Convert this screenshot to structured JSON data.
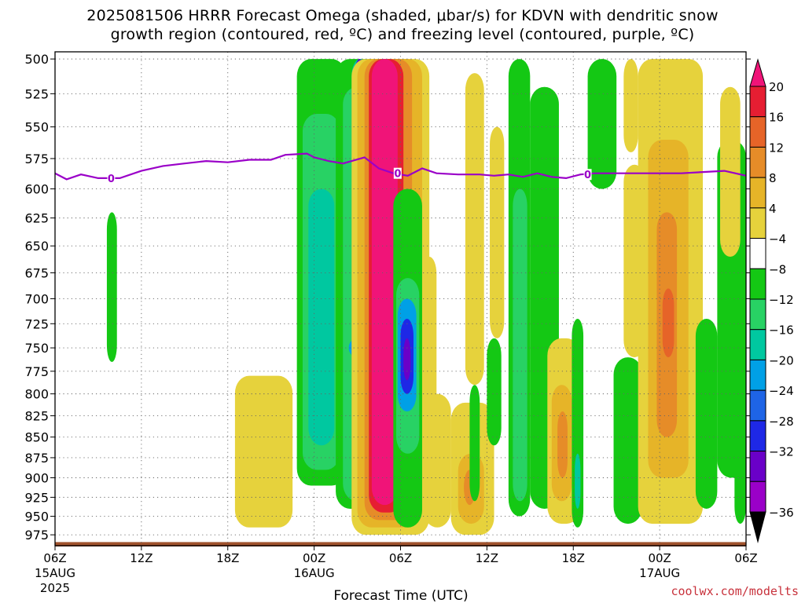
{
  "header": {
    "title_line1": "2025081506 HRRR Forecast Omega (shaded, μbar/s) for KDVN with dendritic snow",
    "title_line2": "growth region (contoured, red, ºC) and freezing level (contoured, purple, ºC)"
  },
  "footer": {
    "xlabel": "Forecast Time (UTC)",
    "credit": "coolwx.com/modelts"
  },
  "colors": {
    "c-36": "#a0a0a0",
    "c-32": "#9a00c8",
    "c-28": "#6a00c8",
    "c-24": "#1e28e6",
    "c-20": "#1e64e6",
    "c-16": "#00a0e6",
    "c-12": "#00c8a0",
    "c-8": "#28d264",
    "c-4": "#14c814",
    "c0": "#ffffff",
    "c4": "#e6d23c",
    "c8": "#e6b428",
    "c12": "#e68c28",
    "c16": "#e66428",
    "c20": "#e61e32",
    "c24": "#f01478",
    "freezing": "#9a00c8",
    "terrain": "#a0522d"
  },
  "chart_data": {
    "type": "heatmap",
    "title": "2025081506 HRRR Forecast Omega (shaded, μbar/s) for KDVN with dendritic snow growth region (contoured, red, ºC) and freezing level (contoured, purple, ºC)",
    "xlabel": "Forecast Time (UTC)",
    "ylabel": "",
    "x_range_hours": [
      0,
      48
    ],
    "y_range_hpa": [
      500,
      990
    ],
    "y_scale": "log-pressure (inverted)",
    "y_ticks": [
      500,
      525,
      550,
      575,
      600,
      625,
      650,
      675,
      700,
      725,
      750,
      775,
      800,
      825,
      850,
      875,
      900,
      925,
      950,
      975
    ],
    "x_ticks": [
      {
        "hour": 0,
        "label": "06Z",
        "sub1": "15AUG",
        "sub2": "2025"
      },
      {
        "hour": 6,
        "label": "12Z",
        "sub1": "",
        "sub2": ""
      },
      {
        "hour": 12,
        "label": "18Z",
        "sub1": "",
        "sub2": ""
      },
      {
        "hour": 18,
        "label": "00Z",
        "sub1": "16AUG",
        "sub2": ""
      },
      {
        "hour": 24,
        "label": "06Z",
        "sub1": "",
        "sub2": ""
      },
      {
        "hour": 30,
        "label": "12Z",
        "sub1": "",
        "sub2": ""
      },
      {
        "hour": 36,
        "label": "18Z",
        "sub1": "",
        "sub2": ""
      },
      {
        "hour": 42,
        "label": "00Z",
        "sub1": "17AUG",
        "sub2": ""
      },
      {
        "hour": 48,
        "label": "06Z",
        "sub1": "",
        "sub2": ""
      }
    ],
    "grid": true,
    "colorbar": {
      "placement": "right",
      "labels": [
        "20",
        "16",
        "12",
        "8",
        "4",
        "−4",
        "−8",
        "−12",
        "−16",
        "−20",
        "−24",
        "−28",
        "−32",
        "−36"
      ],
      "colors": [
        "#f01478",
        "#e61e32",
        "#e66428",
        "#e68c28",
        "#e6b428",
        "#e6d23c",
        "#ffffff",
        "#14c814",
        "#28d264",
        "#00c8a0",
        "#00a0e6",
        "#1e64e6",
        "#1e28e6",
        "#6a00c8",
        "#9a00c8",
        "#a0a0a0"
      ]
    },
    "freezing_level": {
      "label": "0",
      "points": [
        [
          0,
          587
        ],
        [
          0.8,
          592
        ],
        [
          1.8,
          588
        ],
        [
          3.0,
          591
        ],
        [
          4.5,
          591
        ],
        [
          6.0,
          585
        ],
        [
          7.5,
          581
        ],
        [
          9.0,
          579
        ],
        [
          10.5,
          577
        ],
        [
          12.0,
          578
        ],
        [
          13.5,
          576
        ],
        [
          15.0,
          576
        ],
        [
          16.0,
          572
        ],
        [
          17.5,
          571
        ],
        [
          18.0,
          574
        ],
        [
          19.0,
          577
        ],
        [
          20.0,
          579
        ],
        [
          21.5,
          574
        ],
        [
          22.5,
          583
        ],
        [
          23.5,
          587
        ],
        [
          24.5,
          589
        ],
        [
          25.5,
          583
        ],
        [
          26.5,
          587
        ],
        [
          28.0,
          588
        ],
        [
          29.5,
          588
        ],
        [
          30.5,
          589
        ],
        [
          31.5,
          588
        ],
        [
          32.5,
          590
        ],
        [
          33.5,
          587
        ],
        [
          34.5,
          590
        ],
        [
          35.5,
          591
        ],
        [
          36.5,
          588
        ],
        [
          37.5,
          587
        ],
        [
          39.0,
          587
        ],
        [
          40.5,
          587
        ],
        [
          42.0,
          587
        ],
        [
          43.5,
          587
        ],
        [
          45.0,
          586
        ],
        [
          46.5,
          585
        ],
        [
          48.0,
          589
        ]
      ],
      "label_hours": [
        3.9,
        23.8,
        37.0
      ]
    },
    "omega_cells": [
      {
        "t0": 3.6,
        "t1": 4.3,
        "p0": 620,
        "p1": 765,
        "v": -4
      },
      {
        "t0": 12.5,
        "t1": 16.5,
        "p0": 780,
        "p1": 965,
        "v": 4
      },
      {
        "t0": 16.8,
        "t1": 20.2,
        "p0": 500,
        "p1": 910,
        "v": -4
      },
      {
        "t0": 17.2,
        "t1": 19.8,
        "p0": 540,
        "p1": 890,
        "v": -8
      },
      {
        "t0": 17.6,
        "t1": 19.4,
        "p0": 600,
        "p1": 860,
        "v": -12
      },
      {
        "t0": 19.5,
        "t1": 23.5,
        "p0": 500,
        "p1": 940,
        "v": -4
      },
      {
        "t0": 20.0,
        "t1": 22.5,
        "p0": 520,
        "p1": 930,
        "v": -8
      },
      {
        "t0": 20.6,
        "t1": 21.8,
        "p0": 500,
        "p1": 920,
        "v": -12
      },
      {
        "t0": 20.8,
        "t1": 21.5,
        "p0": 500,
        "p1": 590,
        "v": -24
      },
      {
        "t0": 20.9,
        "t1": 21.4,
        "p0": 500,
        "p1": 560,
        "v": -28
      },
      {
        "t0": 20.4,
        "t1": 21.6,
        "p0": 740,
        "p1": 760,
        "v": -16
      },
      {
        "t0": 20.6,
        "t1": 26.0,
        "p0": 500,
        "p1": 975,
        "v": 4
      },
      {
        "t0": 21.0,
        "t1": 25.5,
        "p0": 500,
        "p1": 965,
        "v": 8
      },
      {
        "t0": 21.5,
        "t1": 24.8,
        "p0": 500,
        "p1": 955,
        "v": 12
      },
      {
        "t0": 21.8,
        "t1": 24.2,
        "p0": 500,
        "p1": 945,
        "v": 20
      },
      {
        "t0": 22.0,
        "t1": 23.8,
        "p0": 500,
        "p1": 935,
        "v": 24
      },
      {
        "t0": 23.5,
        "t1": 25.5,
        "p0": 600,
        "p1": 965,
        "v": -4
      },
      {
        "t0": 23.7,
        "t1": 25.3,
        "p0": 680,
        "p1": 870,
        "v": -8
      },
      {
        "t0": 23.8,
        "t1": 25.1,
        "p0": 700,
        "p1": 820,
        "v": -16
      },
      {
        "t0": 24.0,
        "t1": 24.9,
        "p0": 720,
        "p1": 800,
        "v": -24
      },
      {
        "t0": 24.2,
        "t1": 24.7,
        "p0": 740,
        "p1": 785,
        "v": -28
      },
      {
        "t0": 25.5,
        "t1": 26.5,
        "p0": 660,
        "p1": 850,
        "v": 4
      },
      {
        "t0": 25.6,
        "t1": 27.5,
        "p0": 800,
        "p1": 965,
        "v": 4
      },
      {
        "t0": 27.5,
        "t1": 30.5,
        "p0": 810,
        "p1": 975,
        "v": 4
      },
      {
        "t0": 28.0,
        "t1": 29.8,
        "p0": 870,
        "p1": 960,
        "v": 8
      },
      {
        "t0": 28.4,
        "t1": 29.2,
        "p0": 890,
        "p1": 935,
        "v": 12
      },
      {
        "t0": 28.5,
        "t1": 29.8,
        "p0": 510,
        "p1": 790,
        "v": 4
      },
      {
        "t0": 28.8,
        "t1": 29.5,
        "p0": 790,
        "p1": 930,
        "v": -4
      },
      {
        "t0": 30.2,
        "t1": 31.2,
        "p0": 550,
        "p1": 740,
        "v": 4
      },
      {
        "t0": 30.0,
        "t1": 31.0,
        "p0": 740,
        "p1": 860,
        "v": -4
      },
      {
        "t0": 31.5,
        "t1": 33.0,
        "p0": 500,
        "p1": 950,
        "v": -4
      },
      {
        "t0": 31.8,
        "t1": 32.8,
        "p0": 600,
        "p1": 930,
        "v": -8
      },
      {
        "t0": 33.0,
        "t1": 35.0,
        "p0": 520,
        "p1": 940,
        "v": -4
      },
      {
        "t0": 34.2,
        "t1": 36.5,
        "p0": 740,
        "p1": 960,
        "v": 4
      },
      {
        "t0": 34.5,
        "t1": 35.9,
        "p0": 790,
        "p1": 930,
        "v": 8
      },
      {
        "t0": 34.9,
        "t1": 35.6,
        "p0": 820,
        "p1": 900,
        "v": 12
      },
      {
        "t0": 35.9,
        "t1": 36.7,
        "p0": 720,
        "p1": 965,
        "v": -4
      },
      {
        "t0": 36.1,
        "t1": 36.5,
        "p0": 870,
        "p1": 940,
        "v": -12
      },
      {
        "t0": 37.0,
        "t1": 39.0,
        "p0": 500,
        "p1": 600,
        "v": -4
      },
      {
        "t0": 39.5,
        "t1": 40.5,
        "p0": 500,
        "p1": 570,
        "v": 4
      },
      {
        "t0": 39.5,
        "t1": 41.0,
        "p0": 580,
        "p1": 760,
        "v": 4
      },
      {
        "t0": 38.8,
        "t1": 40.8,
        "p0": 760,
        "p1": 960,
        "v": -4
      },
      {
        "t0": 40.5,
        "t1": 45.0,
        "p0": 500,
        "p1": 960,
        "v": 4
      },
      {
        "t0": 41.2,
        "t1": 44.0,
        "p0": 560,
        "p1": 900,
        "v": 8
      },
      {
        "t0": 41.8,
        "t1": 43.2,
        "p0": 620,
        "p1": 850,
        "v": 12
      },
      {
        "t0": 42.2,
        "t1": 43.0,
        "p0": 690,
        "p1": 760,
        "v": 16
      },
      {
        "t0": 44.5,
        "t1": 46.0,
        "p0": 720,
        "p1": 940,
        "v": -4
      },
      {
        "t0": 46.0,
        "t1": 48.0,
        "p0": 560,
        "p1": 900,
        "v": -4
      },
      {
        "t0": 46.2,
        "t1": 47.6,
        "p0": 520,
        "p1": 660,
        "v": 4
      },
      {
        "t0": 47.2,
        "t1": 48.0,
        "p0": 780,
        "p1": 960,
        "v": -4
      }
    ]
  }
}
